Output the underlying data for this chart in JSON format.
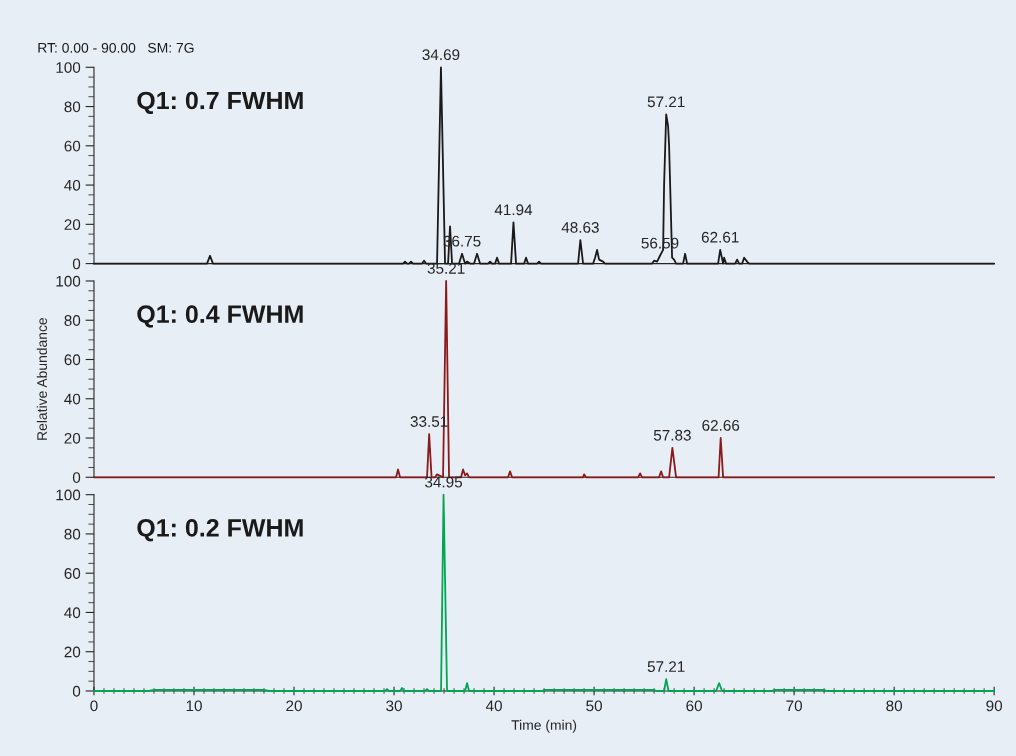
{
  "chart_data": [
    {
      "type": "line",
      "title": "Q1: 0.7 FWHM",
      "annotations": [
        "RT: 0.00 - 90.00   SM: 7G",
        {
          "text": "34.69",
          "x": 34.69,
          "y": 100
        },
        {
          "text": "36.75",
          "x": 36.8,
          "y": 5
        },
        {
          "text": "41.94",
          "x": 41.94,
          "y": 21
        },
        {
          "text": "48.63",
          "x": 48.63,
          "y": 12
        },
        {
          "text": "56.59",
          "x": 56.59,
          "y": 4
        },
        {
          "text": "57.21",
          "x": 57.21,
          "y": 76
        },
        {
          "text": "62.61",
          "x": 62.61,
          "y": 7
        }
      ],
      "x": [
        0,
        11.3,
        11.6,
        11.9,
        30.9,
        31.1,
        31.3,
        31.5,
        31.7,
        31.9,
        32.8,
        33.0,
        33.2,
        34.3,
        34.69,
        35.1,
        35.4,
        35.6,
        35.8,
        36.5,
        36.8,
        37.1,
        37.3,
        37.6,
        38.0,
        38.3,
        38.6,
        39.4,
        39.6,
        39.8,
        40.1,
        40.3,
        40.5,
        41.7,
        41.94,
        42.2,
        43.0,
        43.2,
        43.4,
        44.3,
        44.5,
        44.7,
        48.4,
        48.63,
        48.9,
        49.9,
        50.1,
        50.3,
        50.5,
        50.9,
        51.1,
        55.8,
        56.0,
        56.3,
        56.59,
        56.9,
        57.0,
        57.21,
        57.4,
        57.5,
        57.8,
        58.0,
        58.2,
        58.9,
        59.1,
        59.3,
        62.4,
        62.61,
        62.9,
        63.0,
        63.2,
        64.1,
        64.3,
        64.5,
        64.8,
        65.0,
        65.3,
        65.5,
        90
      ],
      "series": [
        {
          "color": "#1a1a1a",
          "values": [
            0,
            0,
            4,
            0,
            0,
            1,
            0,
            0,
            1,
            0,
            0,
            1.5,
            0,
            0,
            100,
            0,
            0,
            19,
            0,
            0,
            5,
            0,
            1,
            0,
            0,
            5,
            0,
            0,
            1,
            0,
            0,
            3,
            0,
            0,
            21,
            0,
            0,
            3,
            0,
            0,
            1,
            0,
            0,
            12,
            0,
            0,
            3,
            7,
            2,
            1,
            0,
            0,
            1.5,
            1,
            4,
            7,
            40,
            76,
            70,
            60,
            3,
            2,
            0,
            0,
            5,
            0,
            0,
            7,
            0,
            3,
            0,
            0,
            2,
            0,
            0,
            3,
            1,
            0,
            0
          ]
        }
      ],
      "xlim": [
        0,
        90
      ],
      "ylim": [
        0,
        100
      ],
      "yticks": [
        0,
        20,
        40,
        60,
        80,
        100
      ],
      "tick_labels": "y"
    },
    {
      "type": "line",
      "title": "Q1: 0.4 FWHM",
      "ylabel": "Relative Abundance",
      "annotations": [
        {
          "text": "35.21",
          "x": 35.21,
          "y": 100
        },
        {
          "text": "33.51",
          "x": 33.51,
          "y": 22
        },
        {
          "text": "57.83",
          "x": 57.83,
          "y": 15
        },
        {
          "text": "62.66",
          "x": 62.66,
          "y": 20
        }
      ],
      "x": [
        0,
        30.2,
        30.4,
        30.6,
        33.3,
        33.51,
        33.75,
        34.1,
        34.3,
        34.5,
        34.9,
        35.21,
        35.5,
        36.7,
        36.9,
        37.1,
        37.3,
        37.5,
        41.4,
        41.6,
        41.8,
        48.9,
        49.0,
        49.2,
        54.4,
        54.6,
        54.8,
        56.5,
        56.7,
        56.9,
        57.5,
        57.83,
        58.2,
        62.45,
        62.66,
        62.9,
        90
      ],
      "series": [
        {
          "color": "#8b1a1a",
          "values": [
            0,
            0,
            4,
            0,
            0,
            22,
            0,
            0,
            1.5,
            1,
            0,
            100,
            0,
            0,
            4,
            1,
            2,
            0,
            0,
            3,
            0,
            0,
            1.5,
            0,
            0,
            2,
            0,
            0,
            3,
            0,
            0,
            15,
            0,
            0,
            20,
            0,
            0
          ]
        }
      ],
      "xlim": [
        0,
        90
      ],
      "ylim": [
        0,
        100
      ],
      "yticks": [
        0,
        20,
        40,
        60,
        80,
        100
      ],
      "tick_labels": "y"
    },
    {
      "type": "line",
      "title": "Q1: 0.2 FWHM",
      "xlabel": "Time (min)",
      "annotations": [
        {
          "text": "34.95",
          "x": 34.95,
          "y": 100
        },
        {
          "text": "57.21",
          "x": 57.21,
          "y": 6
        }
      ],
      "x": [
        0,
        5.5,
        6,
        8,
        12,
        17,
        17.5,
        29.1,
        29.3,
        29.5,
        30.6,
        30.8,
        31.0,
        33.1,
        33.3,
        33.5,
        34.7,
        34.95,
        35.3,
        37.1,
        37.3,
        37.5,
        44.8,
        45,
        56,
        56.3,
        57.0,
        57.21,
        57.45,
        62.2,
        62.5,
        62.8,
        67.8,
        68,
        73,
        73.3,
        90
      ],
      "series": [
        {
          "color": "#00a651",
          "values": [
            0,
            0,
            0.5,
            0.5,
            0.5,
            0.5,
            0,
            0,
            1,
            0,
            0,
            1.5,
            0,
            0,
            1,
            0,
            0,
            100,
            0,
            0,
            4,
            0,
            0,
            0.5,
            0.5,
            0,
            0,
            6,
            0,
            0,
            4,
            0,
            0,
            0.5,
            0.5,
            0,
            0
          ]
        }
      ],
      "xlim": [
        0,
        90
      ],
      "ylim": [
        0,
        100
      ],
      "xticks": [
        0,
        10,
        20,
        30,
        40,
        50,
        60,
        70,
        80,
        90
      ],
      "yticks": [
        0,
        20,
        40,
        60,
        80,
        100
      ]
    }
  ]
}
